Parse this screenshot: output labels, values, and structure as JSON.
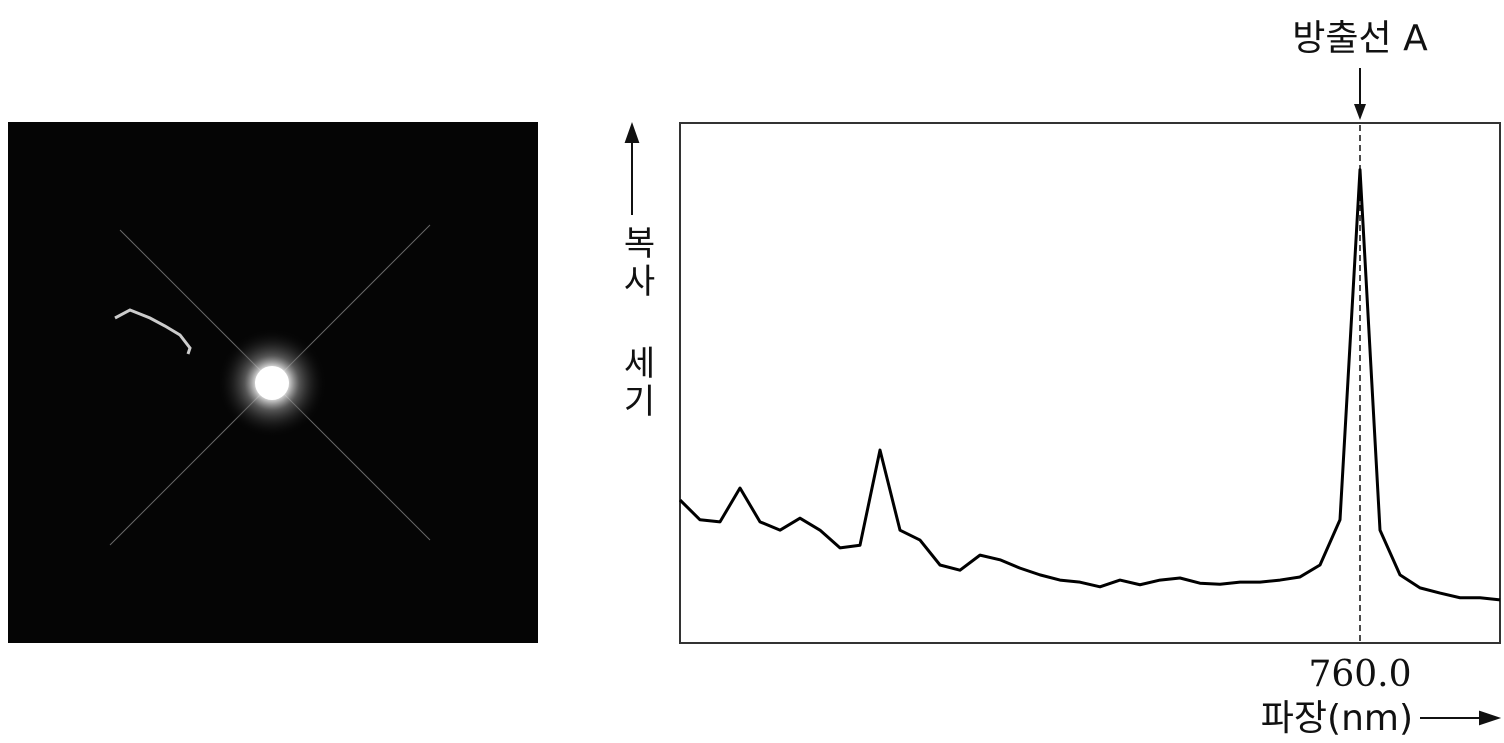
{
  "chart_data": {
    "type": "line",
    "annotation": "방출선 A",
    "y_label": "복사 세기",
    "x_label": "파장(nm)",
    "categories": [
      null,
      null,
      null,
      null,
      null,
      null,
      null,
      null,
      null,
      null,
      null,
      null,
      null,
      null,
      null,
      null,
      null,
      null,
      null,
      null,
      null,
      null,
      null,
      null,
      null,
      null,
      null,
      null,
      null,
      null,
      null,
      null,
      null,
      null,
      "760.0",
      null,
      null,
      null,
      null,
      null,
      null,
      null
    ],
    "values": [
      27.5,
      23.7,
      23.3,
      29.8,
      23.3,
      21.7,
      24.0,
      21.7,
      18.3,
      18.8,
      37.1,
      21.7,
      19.8,
      15.0,
      14.0,
      16.9,
      16.0,
      14.4,
      13.1,
      12.1,
      11.7,
      10.8,
      12.1,
      11.2,
      12.1,
      12.5,
      11.5,
      11.3,
      11.7,
      11.7,
      12.1,
      12.7,
      15.0,
      23.7,
      91.0,
      21.7,
      13.1,
      10.6,
      9.6,
      8.7,
      8.7,
      8.3
    ],
    "color": "#000000",
    "ylim": [
      0,
      100
    ]
  }
}
